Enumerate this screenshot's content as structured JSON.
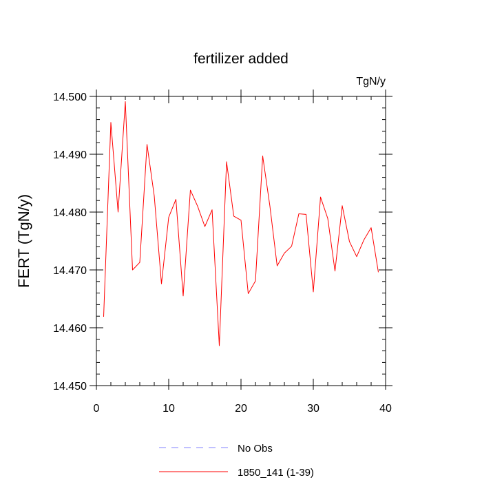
{
  "chart_data": {
    "type": "line",
    "title": "fertilizer added",
    "units_label": "TgN/y",
    "ylabel": "FERT  (TgN/y)",
    "xlabel": "",
    "xlim": [
      0,
      40
    ],
    "ylim": [
      14.45,
      14.5
    ],
    "xticks": [
      0,
      10,
      20,
      30,
      40
    ],
    "yticks": [
      14.45,
      14.46,
      14.47,
      14.48,
      14.49,
      14.5
    ],
    "ytick_labels": [
      "14.450",
      "14.460",
      "14.470",
      "14.480",
      "14.490",
      "14.500"
    ],
    "grid": false,
    "legend_position": "bottom",
    "series": [
      {
        "name": "1850_141 (1-39)",
        "color": "#ff0000",
        "style": "solid",
        "x": [
          1,
          2,
          3,
          4,
          5,
          6,
          7,
          8,
          9,
          10,
          11,
          12,
          13,
          14,
          15,
          16,
          17,
          18,
          19,
          20,
          21,
          22,
          23,
          24,
          25,
          26,
          27,
          28,
          29,
          30,
          31,
          32,
          33,
          34,
          35,
          36,
          37,
          38,
          39
        ],
        "y": [
          14.4619,
          14.4955,
          14.48,
          14.4991,
          14.47,
          14.4713,
          14.4917,
          14.4828,
          14.4676,
          14.4791,
          14.4822,
          14.4655,
          14.4838,
          14.481,
          14.4775,
          14.4804,
          14.4569,
          14.4887,
          14.4793,
          14.4786,
          14.4659,
          14.4681,
          14.4897,
          14.481,
          14.4707,
          14.4729,
          14.4741,
          14.4797,
          14.4796,
          14.4662,
          14.4826,
          14.4789,
          14.4698,
          14.4811,
          14.4749,
          14.4723,
          14.4752,
          14.4773,
          14.4696
        ]
      }
    ],
    "legend": [
      {
        "label": "No Obs",
        "color": "#8080ff",
        "style": "dashed"
      },
      {
        "label": "1850_141 (1-39)",
        "color": "#ff0000",
        "style": "solid"
      }
    ]
  }
}
